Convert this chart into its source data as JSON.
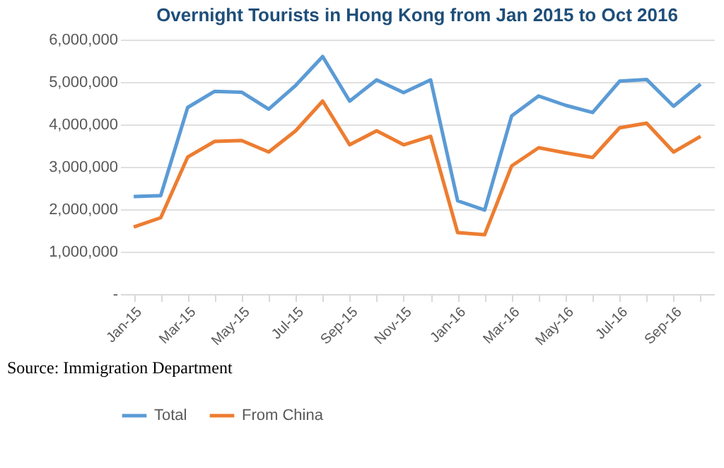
{
  "chart_data": {
    "type": "line",
    "title": "Overnight Tourists in Hong Kong from Jan 2015 to Oct 2016",
    "categories": [
      "Jan-15",
      null,
      "Mar-15",
      null,
      "May-15",
      null,
      "Jul-15",
      null,
      "Sep-15",
      null,
      "Nov-15",
      null,
      "Jan-16",
      null,
      "Mar-16",
      null,
      "May-16",
      null,
      "Jul-16",
      null,
      "Sep-16",
      null
    ],
    "series": [
      {
        "name": "Total",
        "color": "#5b9bd5",
        "values": [
          2300000,
          2320000,
          4400000,
          4780000,
          4760000,
          4360000,
          4920000,
          5600000,
          4550000,
          5050000,
          4750000,
          5050000,
          2200000,
          1980000,
          4200000,
          4670000,
          4450000,
          4280000,
          5020000,
          5060000,
          4430000,
          4950000
        ]
      },
      {
        "name": "From China",
        "color": "#ed7d31",
        "values": [
          1580000,
          1800000,
          3230000,
          3600000,
          3620000,
          3350000,
          3850000,
          4550000,
          3520000,
          3850000,
          3520000,
          3720000,
          1450000,
          1400000,
          3020000,
          3450000,
          3330000,
          3220000,
          3920000,
          4030000,
          3350000,
          3720000
        ]
      }
    ],
    "ylim": [
      0,
      6000000
    ],
    "yticks": [
      {
        "value": 0,
        "label": "-"
      },
      {
        "value": 1000000,
        "label": "1,000,000"
      },
      {
        "value": 2000000,
        "label": "2,000,000"
      },
      {
        "value": 3000000,
        "label": "3,000,000"
      },
      {
        "value": 4000000,
        "label": "4,000,000"
      },
      {
        "value": 5000000,
        "label": "5,000,000"
      },
      {
        "value": 6000000,
        "label": "6,000,000"
      }
    ],
    "grid": "y",
    "legend": "bottom",
    "marker": "none",
    "line_style": "solid",
    "annotations": [
      "Source: Immigration Department"
    ]
  }
}
